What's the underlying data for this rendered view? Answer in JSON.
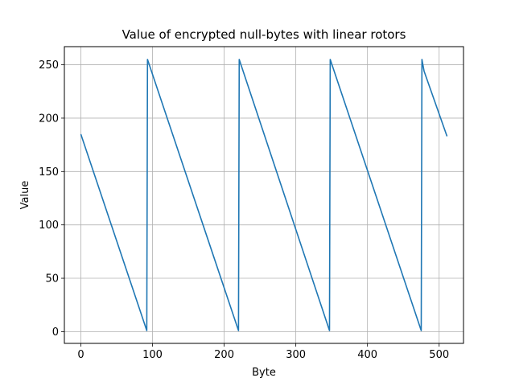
{
  "chart_data": {
    "type": "line",
    "title": "Value of encrypted null-bytes with linear rotors",
    "xlabel": "Byte",
    "ylabel": "Value",
    "xlim": [
      -23,
      534
    ],
    "ylim": [
      -11,
      267
    ],
    "xticks": [
      0,
      100,
      200,
      300,
      400,
      500
    ],
    "yticks": [
      0,
      50,
      100,
      150,
      200,
      250
    ],
    "grid": true,
    "color": "#1f77b4",
    "series": [
      {
        "x": [
          0,
          92,
          93,
          220,
          221,
          347,
          348,
          475,
          476,
          479,
          511
        ],
        "y": [
          185,
          1,
          255,
          1,
          255,
          1,
          255,
          1,
          255,
          244,
          183
        ]
      }
    ]
  }
}
